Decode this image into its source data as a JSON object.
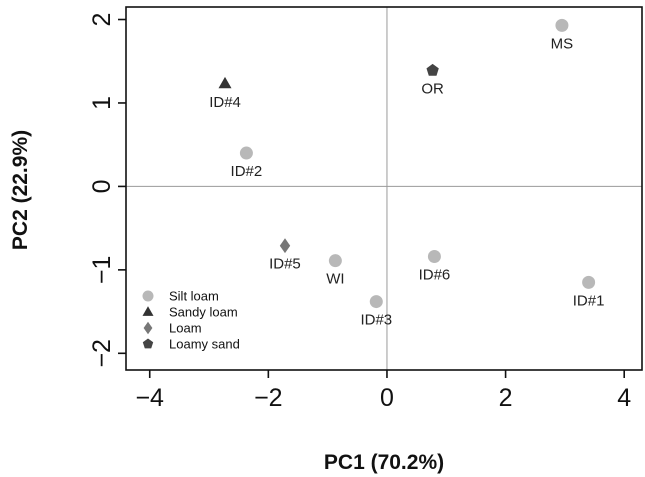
{
  "chart_data": {
    "type": "scatter",
    "xlabel": "PC1 (70.2%)",
    "ylabel": "PC2 (22.9%)",
    "xlim": [
      -4.4,
      4.3
    ],
    "ylim": [
      -2.2,
      2.15
    ],
    "x_ticks": [
      -4,
      -2,
      0,
      2,
      4
    ],
    "y_ticks": [
      -2,
      -1,
      0,
      1,
      2
    ],
    "reference_lines": {
      "x": 0,
      "y": 0
    },
    "legend_position": "bottom-left",
    "categories": [
      {
        "name": "Silt loam",
        "marker": "circle",
        "color": "#b8b8b8"
      },
      {
        "name": "Sandy loam",
        "marker": "triangle",
        "color": "#333333"
      },
      {
        "name": "Loam",
        "marker": "diamond",
        "color": "#777777"
      },
      {
        "name": "Loamy sand",
        "marker": "pentagon",
        "color": "#444444"
      }
    ],
    "points": [
      {
        "label": "MS",
        "x": 2.95,
        "y": 1.93,
        "category": "Silt loam"
      },
      {
        "label": "OR",
        "x": 0.77,
        "y": 1.39,
        "category": "Loamy sand"
      },
      {
        "label": "ID#4",
        "x": -2.73,
        "y": 1.23,
        "category": "Sandy loam"
      },
      {
        "label": "ID#2",
        "x": -2.37,
        "y": 0.4,
        "category": "Silt loam"
      },
      {
        "label": "ID#5",
        "x": -1.72,
        "y": -0.71,
        "category": "Loam"
      },
      {
        "label": "WI",
        "x": -0.87,
        "y": -0.89,
        "category": "Silt loam"
      },
      {
        "label": "ID#6",
        "x": 0.8,
        "y": -0.84,
        "category": "Silt loam"
      },
      {
        "label": "ID#3",
        "x": -0.18,
        "y": -1.38,
        "category": "Silt loam"
      },
      {
        "label": "ID#1",
        "x": 3.4,
        "y": -1.15,
        "category": "Silt loam"
      }
    ]
  }
}
